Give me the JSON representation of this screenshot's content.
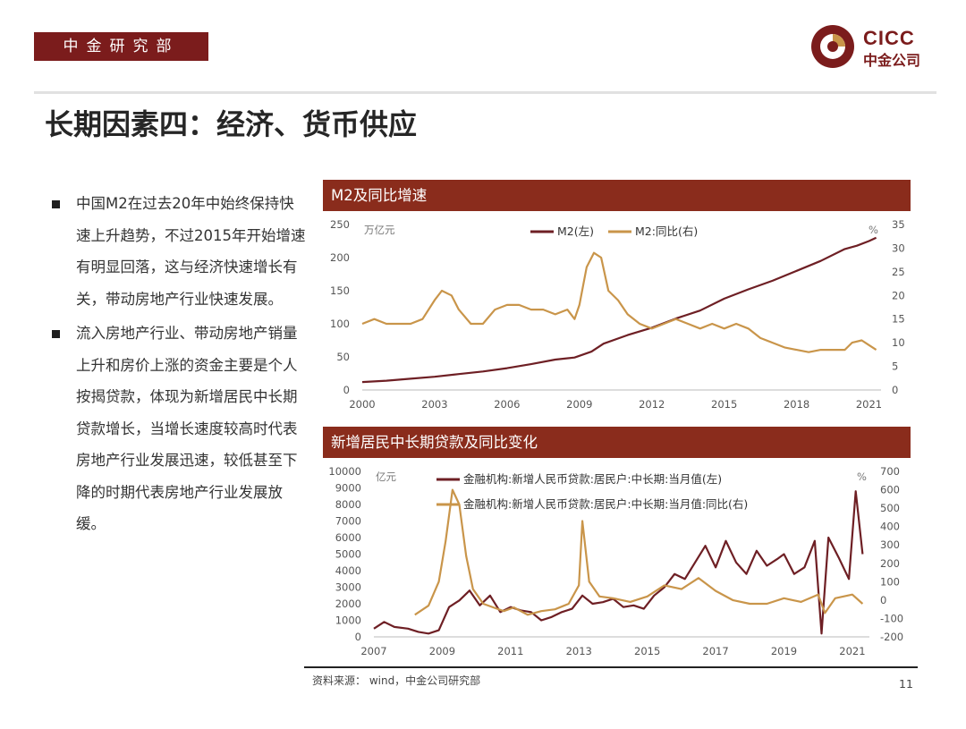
{
  "header": {
    "dept": "中金研究部",
    "logo_en": "CICC",
    "logo_cn": "中金公司"
  },
  "title": "长期因素四：经济、货币供应",
  "bullets": [
    "中国M2在过去20年中始终保持快速上升趋势，不过2015年开始增速有明显回落，这与经济快速增长有关，带动房地产行业快速发展。",
    "流入房地产行业、带动房地产销量上升和房价上涨的资金主要是个人按揭贷款，体现为新增居民中长期贷款增长，当增长速度较高时代表房地产行业发展迅速，较低甚至下降的时期代表房地产行业发展放缓。"
  ],
  "colors": {
    "accent": "#8a2c1c",
    "dark_series": "#6e1f24",
    "gold_series": "#c9954a"
  },
  "chart_data": [
    {
      "type": "line",
      "title": "M2及同比增速",
      "left_unit": "万亿元",
      "right_unit": "%",
      "x_ticks": [
        "2000",
        "2003",
        "2006",
        "2009",
        "2012",
        "2015",
        "2018",
        "2021"
      ],
      "x_range": [
        2000,
        2021.5
      ],
      "ylim_left": [
        0,
        250
      ],
      "ylim_right": [
        0,
        35
      ],
      "yticks_left": [
        "0",
        "50",
        "100",
        "150",
        "200",
        "250"
      ],
      "yticks_right": [
        "0",
        "5",
        "10",
        "15",
        "20",
        "25",
        "30",
        "35"
      ],
      "legend_placement": "top",
      "series": [
        {
          "name": "M2(左)",
          "axis": "left",
          "color": "#6e1f24",
          "x": [
            2000,
            2001,
            2002,
            2003,
            2004,
            2005,
            2006,
            2007,
            2008,
            2008.8,
            2009.5,
            2010,
            2011,
            2012,
            2013,
            2014,
            2015,
            2016,
            2017,
            2018,
            2019,
            2020,
            2020.5,
            2021,
            2021.3
          ],
          "y": [
            12,
            14,
            17,
            20,
            24,
            28,
            33,
            39,
            46,
            49,
            58,
            70,
            83,
            94,
            108,
            120,
            138,
            152,
            165,
            180,
            195,
            213,
            218,
            225,
            230
          ]
        },
        {
          "name": "M2:同比(右)",
          "axis": "right",
          "color": "#c9954a",
          "x": [
            2000,
            2000.5,
            2001,
            2001.5,
            2002,
            2002.5,
            2003,
            2003.3,
            2003.7,
            2004,
            2004.5,
            2005,
            2005.5,
            2006,
            2006.5,
            2007,
            2007.5,
            2008,
            2008.5,
            2008.8,
            2009,
            2009.3,
            2009.6,
            2009.9,
            2010.2,
            2010.6,
            2011,
            2011.5,
            2012,
            2012.5,
            2013,
            2013.5,
            2014,
            2014.5,
            2015,
            2015.5,
            2016,
            2016.5,
            2017,
            2017.5,
            2018,
            2018.5,
            2019,
            2019.5,
            2020,
            2020.3,
            2020.7,
            2021,
            2021.3
          ],
          "y": [
            14,
            15,
            14,
            14,
            14,
            15,
            19,
            21,
            20,
            17,
            14,
            14,
            17,
            18,
            18,
            17,
            17,
            16,
            17,
            15,
            18,
            26,
            29,
            28,
            21,
            19,
            16,
            14,
            13,
            14,
            15,
            14,
            13,
            14,
            13,
            14,
            13,
            11,
            10,
            9,
            8.5,
            8,
            8.5,
            8.5,
            8.5,
            10,
            10.5,
            9.5,
            8.5
          ]
        }
      ]
    },
    {
      "type": "line",
      "title": "新增居民中长期贷款及同比变化",
      "left_unit": "亿元",
      "right_unit": "%",
      "x_ticks": [
        "2007",
        "2009",
        "2011",
        "2013",
        "2015",
        "2017",
        "2019",
        "2021"
      ],
      "x_range": [
        2007,
        2021.5
      ],
      "ylim_left": [
        0,
        10000
      ],
      "ylim_right": [
        -200,
        700
      ],
      "yticks_left": [
        "0",
        "1000",
        "2000",
        "3000",
        "4000",
        "5000",
        "6000",
        "7000",
        "8000",
        "9000",
        "10000"
      ],
      "yticks_right": [
        "-200",
        "-100",
        "0",
        "100",
        "200",
        "300",
        "400",
        "500",
        "600",
        "700"
      ],
      "legend_placement": "top",
      "series": [
        {
          "name": "金融机构:新增人民币贷款:居民户:中长期:当月值(左)",
          "axis": "left",
          "color": "#6e1f24",
          "x": [
            2007,
            2007.3,
            2007.6,
            2008,
            2008.3,
            2008.6,
            2008.9,
            2009.2,
            2009.5,
            2009.8,
            2010.1,
            2010.4,
            2010.7,
            2011,
            2011.3,
            2011.6,
            2011.9,
            2012.2,
            2012.5,
            2012.8,
            2013.1,
            2013.4,
            2013.7,
            2014,
            2014.3,
            2014.6,
            2014.9,
            2015.2,
            2015.5,
            2015.8,
            2016.1,
            2016.4,
            2016.7,
            2017,
            2017.3,
            2017.6,
            2017.9,
            2018.2,
            2018.5,
            2018.8,
            2019,
            2019.3,
            2019.6,
            2019.9,
            2020.1,
            2020.3,
            2020.6,
            2020.9,
            2021.1,
            2021.3
          ],
          "y": [
            500,
            900,
            600,
            500,
            300,
            200,
            400,
            1800,
            2200,
            2800,
            1900,
            2500,
            1500,
            1800,
            1600,
            1500,
            1000,
            1200,
            1500,
            1700,
            2500,
            2000,
            2100,
            2300,
            1800,
            1900,
            1700,
            2500,
            3000,
            3800,
            3500,
            4500,
            5500,
            4200,
            5800,
            4500,
            3800,
            5200,
            4300,
            4700,
            5000,
            3800,
            4200,
            5800,
            200,
            6000,
            4800,
            3500,
            8800,
            5000
          ]
        },
        {
          "name": "金融机构:新增人民币贷款:居民户:中长期:当月值:同比(右)",
          "axis": "right",
          "color": "#c9954a",
          "x": [
            2008.2,
            2008.6,
            2008.9,
            2009.1,
            2009.3,
            2009.5,
            2009.7,
            2009.9,
            2010.2,
            2010.5,
            2010.8,
            2011.1,
            2011.5,
            2011.9,
            2012.3,
            2012.7,
            2013,
            2013.1,
            2013.3,
            2013.6,
            2014,
            2014.5,
            2015,
            2015.5,
            2016,
            2016.5,
            2017,
            2017.5,
            2018,
            2018.5,
            2019,
            2019.5,
            2020,
            2020.2,
            2020.5,
            2021,
            2021.3
          ],
          "y": [
            -80,
            -30,
            100,
            320,
            600,
            520,
            240,
            60,
            -20,
            -40,
            -60,
            -40,
            -80,
            -60,
            -50,
            -20,
            80,
            430,
            100,
            20,
            10,
            -10,
            20,
            80,
            60,
            120,
            50,
            0,
            -20,
            -20,
            10,
            -10,
            30,
            -70,
            10,
            30,
            -20
          ]
        }
      ]
    }
  ],
  "footer": {
    "source": "资料来源： wind，中金公司研究部",
    "page": "11"
  }
}
